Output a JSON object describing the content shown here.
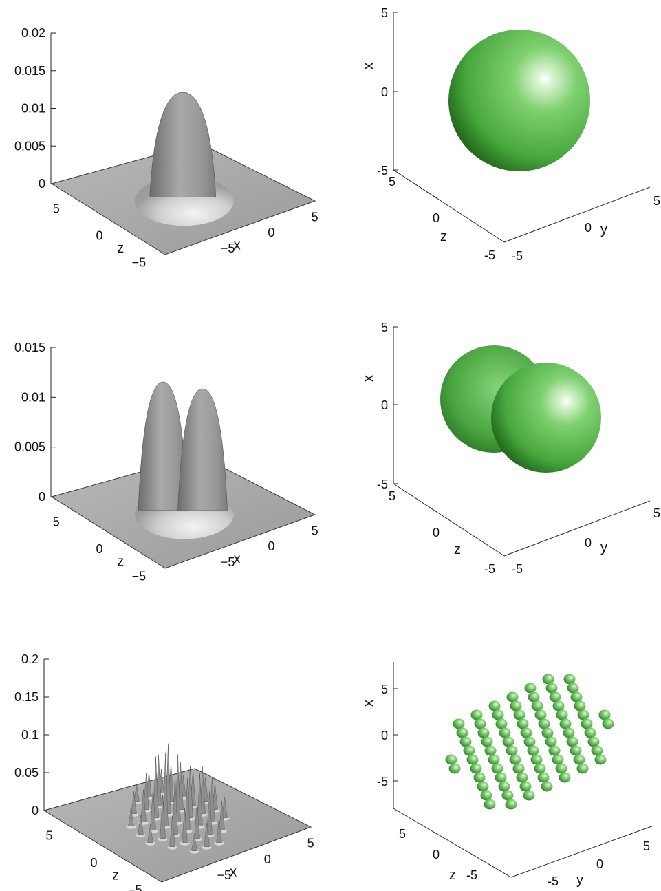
{
  "chart_data": [
    {
      "type": "surface",
      "panel": "top-left",
      "xlabel": "x",
      "ylabel": "z",
      "zlabel": "",
      "xticks": [
        "−5",
        "0",
        "5"
      ],
      "yticks": [
        "5",
        "0",
        "−5"
      ],
      "zticks": [
        "0",
        "0.005",
        "0.01",
        "0.015",
        "0.02"
      ],
      "zlim": [
        0,
        0.02
      ],
      "peaks": [
        {
          "x": 0,
          "z": 0,
          "height": 0.0139
        }
      ]
    },
    {
      "type": "isosurface",
      "panel": "top-right",
      "xlabel": "x",
      "ylabel": "y",
      "zlabel": "z",
      "xticks": [
        "5",
        "0",
        "-5"
      ],
      "yticks": [
        "-5",
        "0",
        "5"
      ],
      "zticks": [
        "5",
        "0",
        "-5"
      ],
      "shape": "sphere",
      "color": "#52b848"
    },
    {
      "type": "surface",
      "panel": "middle-left",
      "xlabel": "x",
      "ylabel": "z",
      "zlabel": "",
      "xticks": [
        "−5",
        "0",
        "5"
      ],
      "yticks": [
        "5",
        "0",
        "−5"
      ],
      "zticks": [
        "0",
        "0.005",
        "0.01",
        "0.015"
      ],
      "zlim": [
        0,
        0.015
      ],
      "peaks": [
        {
          "x": -1.2,
          "z": 0,
          "height": 0.0129
        },
        {
          "x": 1.2,
          "z": 0,
          "height": 0.0122
        }
      ]
    },
    {
      "type": "isosurface",
      "panel": "middle-right",
      "xlabel": "x",
      "ylabel": "y",
      "zlabel": "z",
      "xticks": [
        "5",
        "0",
        "-5"
      ],
      "yticks": [
        "-5",
        "0",
        "5"
      ],
      "zticks": [
        "5",
        "0",
        "-5"
      ],
      "shape": "two-lobes",
      "color": "#52b848"
    },
    {
      "type": "surface",
      "panel": "bottom-left",
      "xlabel": "x",
      "ylabel": "z",
      "zlabel": "",
      "xticks": [
        "−5",
        "0",
        "5"
      ],
      "yticks": [
        "5",
        "0",
        "−5"
      ],
      "zticks": [
        "0",
        "0.05",
        "0.1",
        "0.15",
        "0.2"
      ],
      "zlim": [
        0,
        0.2
      ],
      "peaks_description": "lattice of about 49 narrow peaks, max height about 0.1"
    },
    {
      "type": "isosurface",
      "panel": "bottom-right",
      "xlabel": "x",
      "ylabel": "y",
      "zlabel": "z",
      "xticks": [
        "5",
        "0",
        "-5"
      ],
      "yticks": [
        "-5",
        "0",
        "5"
      ],
      "zticks": [
        "5",
        "0",
        "-5"
      ],
      "shape": "lattice-of-spheres",
      "color": "#52b848"
    }
  ]
}
